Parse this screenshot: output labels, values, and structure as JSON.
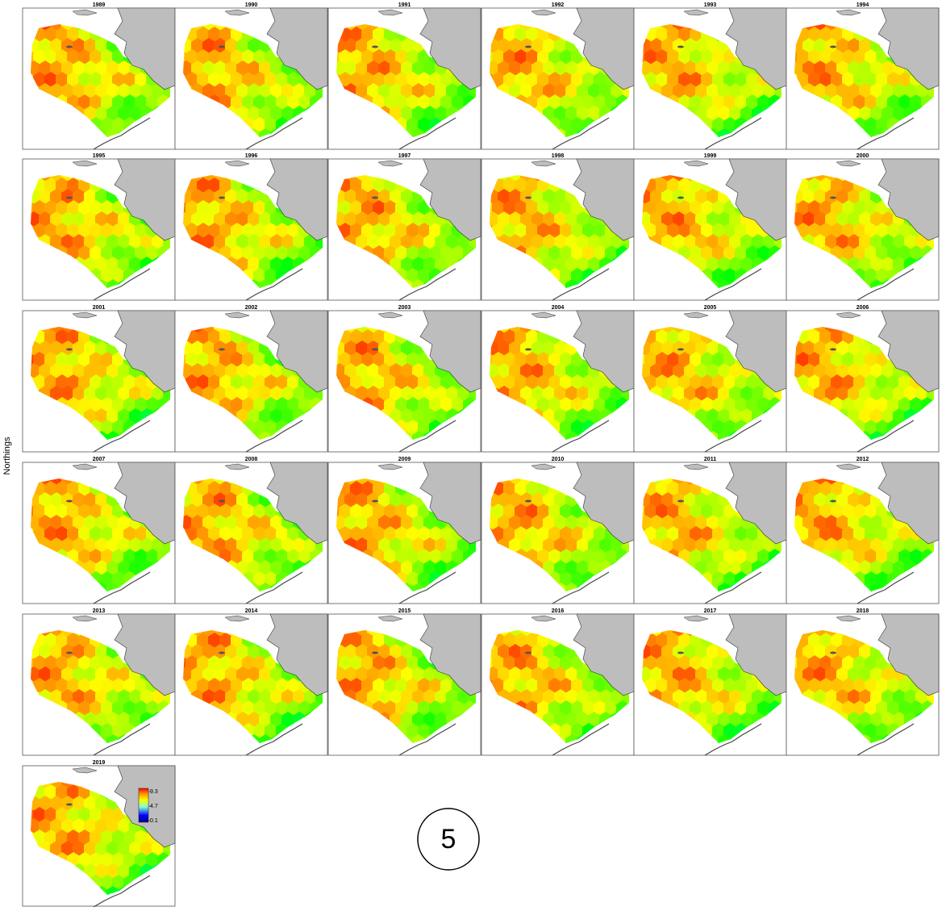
{
  "y_label": "Northings",
  "panels": [
    "1989",
    "1990",
    "1991",
    "1992",
    "1993",
    "1994",
    "1995",
    "1996",
    "1997",
    "1998",
    "1999",
    "2000",
    "2001",
    "2002",
    "2003",
    "2004",
    "2005",
    "2006",
    "2007",
    "2008",
    "2009",
    "2010",
    "2011",
    "2012",
    "2013",
    "2014",
    "2015",
    "2016",
    "2017",
    "2018",
    "2019"
  ],
  "legend": {
    "ticks": [
      9.3,
      4.7,
      0.1
    ]
  },
  "badge": "5"
}
